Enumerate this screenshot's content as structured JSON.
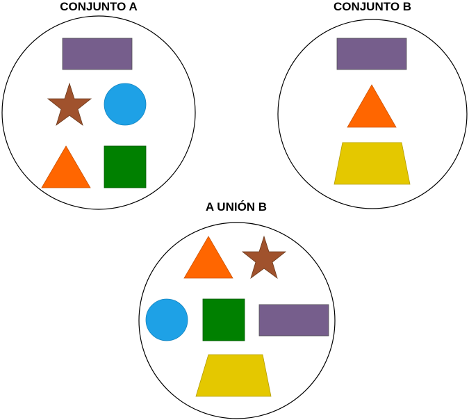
{
  "titles": {
    "set_a": "CONJUNTO A",
    "set_b": "CONJUNTO B",
    "union": "A UNIÓN B"
  },
  "colors": {
    "rectangle": "#765e8c",
    "star": "#a0522d",
    "circle": "#1ea1e6",
    "triangle": "#ff6600",
    "square": "#008000",
    "trapezoid": "#e4c800",
    "outline": "#000000"
  },
  "sets": {
    "set_a": [
      "rectangle",
      "star",
      "circle",
      "triangle",
      "square"
    ],
    "set_b": [
      "rectangle",
      "triangle",
      "trapezoid"
    ],
    "union": [
      "triangle",
      "star",
      "circle",
      "square",
      "rectangle",
      "trapezoid"
    ]
  }
}
